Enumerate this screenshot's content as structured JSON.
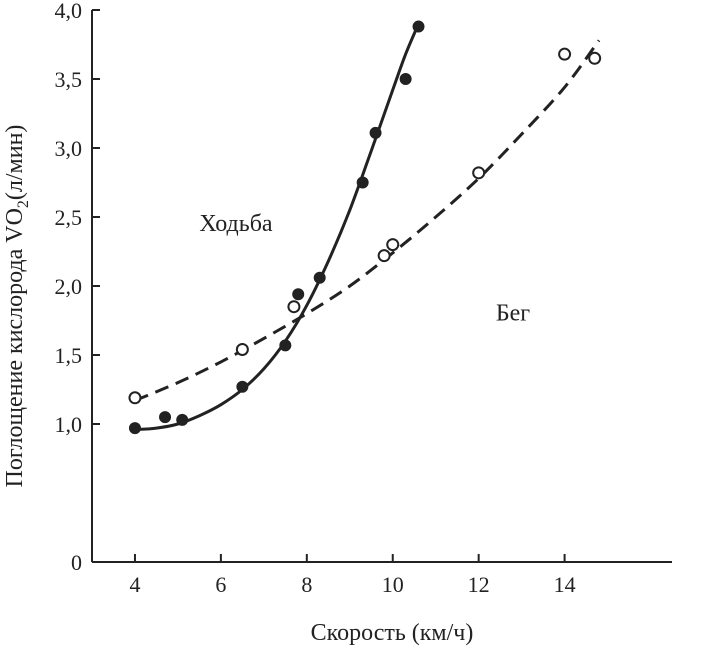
{
  "chart_data": {
    "type": "scatter",
    "title": "",
    "xlabel": "Скорость (км/ч)",
    "ylabel_main": "Поглощение кислорода VO",
    "ylabel_sub": "2",
    "ylabel_unit": "(л/мин)",
    "xlim": [
      3.0,
      16.5
    ],
    "ylim": [
      0,
      4.0
    ],
    "x_ticks": [
      {
        "value": 4,
        "label": "4"
      },
      {
        "value": 6,
        "label": "6"
      },
      {
        "value": 8,
        "label": "8"
      },
      {
        "value": 10,
        "label": "10"
      },
      {
        "value": 12,
        "label": "12"
      },
      {
        "value": 14,
        "label": "14"
      }
    ],
    "y_ticks": [
      {
        "value": 0,
        "label": "0"
      },
      {
        "value": 1.0,
        "label": "1,0"
      },
      {
        "value": 1.5,
        "label": "1,5"
      },
      {
        "value": 2.0,
        "label": "2,0"
      },
      {
        "value": 2.5,
        "label": "2,5"
      },
      {
        "value": 3.0,
        "label": "3,0"
      },
      {
        "value": 3.5,
        "label": "3,5"
      },
      {
        "value": 4.0,
        "label": "4,0"
      }
    ],
    "grid": false,
    "legend": "none",
    "series": [
      {
        "name": "Ходьба",
        "marker": "filled-circle",
        "line_style": "solid",
        "color": "#222222",
        "points": [
          {
            "x": 4.0,
            "y": 0.97
          },
          {
            "x": 4.7,
            "y": 1.05
          },
          {
            "x": 5.1,
            "y": 1.03
          },
          {
            "x": 6.5,
            "y": 1.27
          },
          {
            "x": 7.5,
            "y": 1.57
          },
          {
            "x": 7.8,
            "y": 1.94
          },
          {
            "x": 8.3,
            "y": 2.06
          },
          {
            "x": 9.3,
            "y": 2.75
          },
          {
            "x": 9.6,
            "y": 3.11
          },
          {
            "x": 10.3,
            "y": 3.5
          },
          {
            "x": 10.6,
            "y": 3.88
          }
        ],
        "curve": [
          {
            "x": 4.0,
            "y": 0.96
          },
          {
            "x": 4.5,
            "y": 0.97
          },
          {
            "x": 5.0,
            "y": 1.0
          },
          {
            "x": 5.5,
            "y": 1.06
          },
          {
            "x": 6.0,
            "y": 1.14
          },
          {
            "x": 6.5,
            "y": 1.25
          },
          {
            "x": 7.0,
            "y": 1.4
          },
          {
            "x": 7.5,
            "y": 1.6
          },
          {
            "x": 8.0,
            "y": 1.86
          },
          {
            "x": 8.5,
            "y": 2.18
          },
          {
            "x": 9.0,
            "y": 2.55
          },
          {
            "x": 9.5,
            "y": 2.98
          },
          {
            "x": 10.0,
            "y": 3.42
          },
          {
            "x": 10.3,
            "y": 3.68
          },
          {
            "x": 10.6,
            "y": 3.9
          }
        ]
      },
      {
        "name": "Бег",
        "marker": "open-circle",
        "line_style": "dashed",
        "color": "#222222",
        "points": [
          {
            "x": 4.0,
            "y": 1.19
          },
          {
            "x": 6.5,
            "y": 1.54
          },
          {
            "x": 7.7,
            "y": 1.85
          },
          {
            "x": 9.8,
            "y": 2.22
          },
          {
            "x": 10.0,
            "y": 2.3
          },
          {
            "x": 12.0,
            "y": 2.82
          },
          {
            "x": 14.0,
            "y": 3.68
          },
          {
            "x": 14.7,
            "y": 3.65
          }
        ],
        "curve": [
          {
            "x": 4.0,
            "y": 1.17
          },
          {
            "x": 5.0,
            "y": 1.3
          },
          {
            "x": 6.0,
            "y": 1.45
          },
          {
            "x": 7.0,
            "y": 1.62
          },
          {
            "x": 8.0,
            "y": 1.8
          },
          {
            "x": 9.0,
            "y": 2.0
          },
          {
            "x": 10.0,
            "y": 2.24
          },
          {
            "x": 11.0,
            "y": 2.5
          },
          {
            "x": 12.0,
            "y": 2.78
          },
          {
            "x": 13.0,
            "y": 3.1
          },
          {
            "x": 14.0,
            "y": 3.44
          },
          {
            "x": 14.8,
            "y": 3.78
          }
        ]
      }
    ],
    "annotations": [
      {
        "text": "Ходьба",
        "series": "Ходьба",
        "anchor_x": 5.5,
        "anchor_y": 2.4
      },
      {
        "text": "Бег",
        "series": "Бег",
        "anchor_x": 12.4,
        "anchor_y": 1.75
      }
    ]
  }
}
